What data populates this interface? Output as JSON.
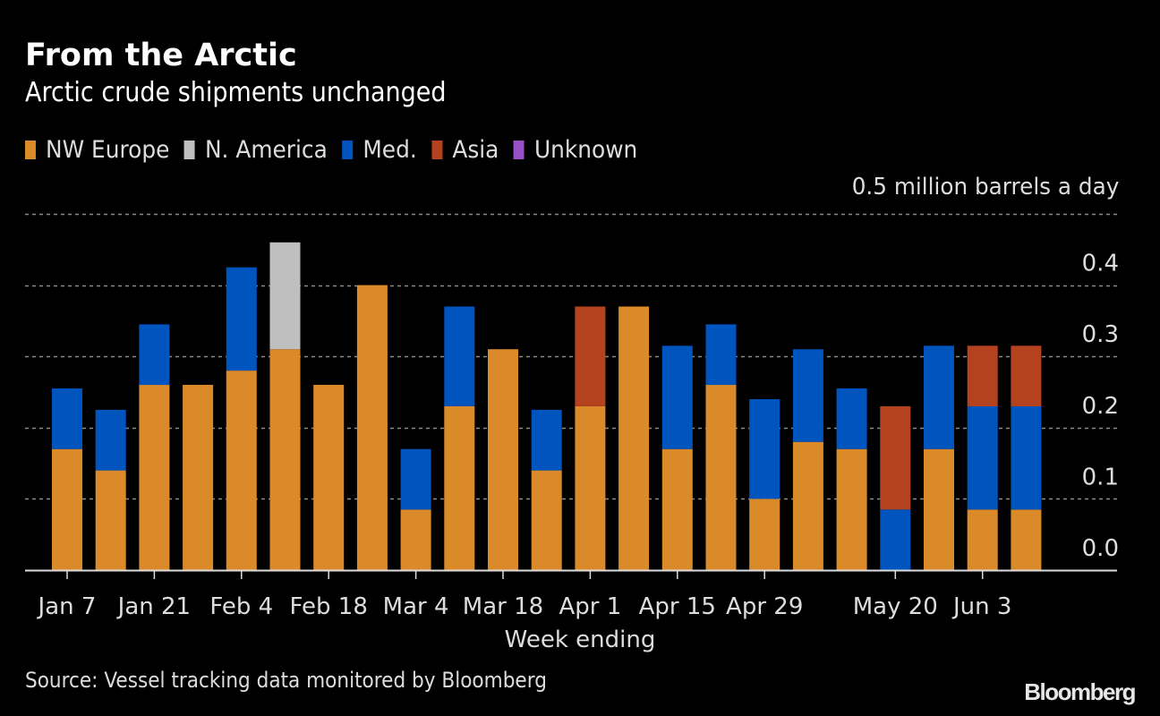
{
  "header": {
    "title": "From the Arctic",
    "subtitle": "Arctic crude shipments unchanged"
  },
  "legend": [
    {
      "label": "NW Europe",
      "color": "#DB8A2A"
    },
    {
      "label": "N. America",
      "color": "#BFBFBF"
    },
    {
      "label": "Med.",
      "color": "#0054BE"
    },
    {
      "label": "Asia",
      "color": "#B5421E"
    },
    {
      "label": "Unknown",
      "color": "#9650C8"
    }
  ],
  "unit_label": "0.5 million barrels a day",
  "footer": {
    "source": "Source: Vessel tracking data monitored by Bloomberg",
    "logo": "Bloomberg"
  },
  "chart_data": {
    "type": "bar",
    "stacked": true,
    "title": "From the Arctic",
    "subtitle": "Arctic crude shipments unchanged",
    "xlabel": "Week ending",
    "ylabel": "million barrels a day",
    "ylim": [
      0,
      0.5
    ],
    "yticks": [
      "0.0",
      "0.1",
      "0.2",
      "0.3",
      "0.4",
      "0.5 million barrels a day"
    ],
    "grid": true,
    "legend_position": "top-left",
    "categories": [
      "Jan 7",
      "Jan 14",
      "Jan 21",
      "Jan 28",
      "Feb 4",
      "Feb 11",
      "Feb 18",
      "Feb 25",
      "Mar 4",
      "Mar 11",
      "Mar 18",
      "Mar 25",
      "Apr 1",
      "Apr 8",
      "Apr 15",
      "Apr 22",
      "Apr 29",
      "May 6",
      "May 13",
      "May 20",
      "May 27",
      "Jun 3",
      "Jun 10"
    ],
    "tick_labels": [
      "Jan 7",
      "",
      "Jan 21",
      "",
      "Feb 4",
      "",
      "Feb 18",
      "",
      "Mar 4",
      "",
      "Mar 18",
      "",
      "Apr 1",
      "",
      "Apr 15",
      "",
      "Apr 29",
      "",
      "",
      "May 20",
      "",
      "Jun 3",
      ""
    ],
    "series": [
      {
        "name": "NW Europe",
        "color": "#DB8A2A",
        "values": [
          0.17,
          0.14,
          0.26,
          0.26,
          0.28,
          0.31,
          0.26,
          0.4,
          0.085,
          0.23,
          0.31,
          0.14,
          0.23,
          0.37,
          0.17,
          0.26,
          0.1,
          0.18,
          0.17,
          0,
          0.17,
          0.085,
          0.085
        ]
      },
      {
        "name": "N. America",
        "color": "#BFBFBF",
        "values": [
          0,
          0,
          0,
          0,
          0,
          0.15,
          0,
          0,
          0,
          0,
          0,
          0,
          0,
          0,
          0,
          0,
          0,
          0,
          0,
          0,
          0,
          0,
          0
        ]
      },
      {
        "name": "Med.",
        "color": "#0054BE",
        "values": [
          0.085,
          0.085,
          0.085,
          0,
          0.145,
          0,
          0,
          0,
          0.085,
          0.14,
          0,
          0.085,
          0,
          0,
          0.145,
          0.085,
          0.14,
          0.13,
          0.085,
          0.085,
          0.145,
          0.145,
          0.145
        ]
      },
      {
        "name": "Asia",
        "color": "#B5421E",
        "values": [
          0,
          0,
          0,
          0,
          0,
          0,
          0,
          0,
          0,
          0,
          0,
          0,
          0.14,
          0,
          0,
          0,
          0,
          0,
          0,
          0.145,
          0,
          0.085,
          0.085
        ]
      },
      {
        "name": "Unknown",
        "color": "#9650C8",
        "values": [
          0,
          0,
          0,
          0,
          0,
          0,
          0,
          0,
          0,
          0,
          0,
          0,
          0,
          0,
          0,
          0,
          0,
          0,
          0,
          0,
          0,
          0,
          0
        ]
      }
    ]
  }
}
